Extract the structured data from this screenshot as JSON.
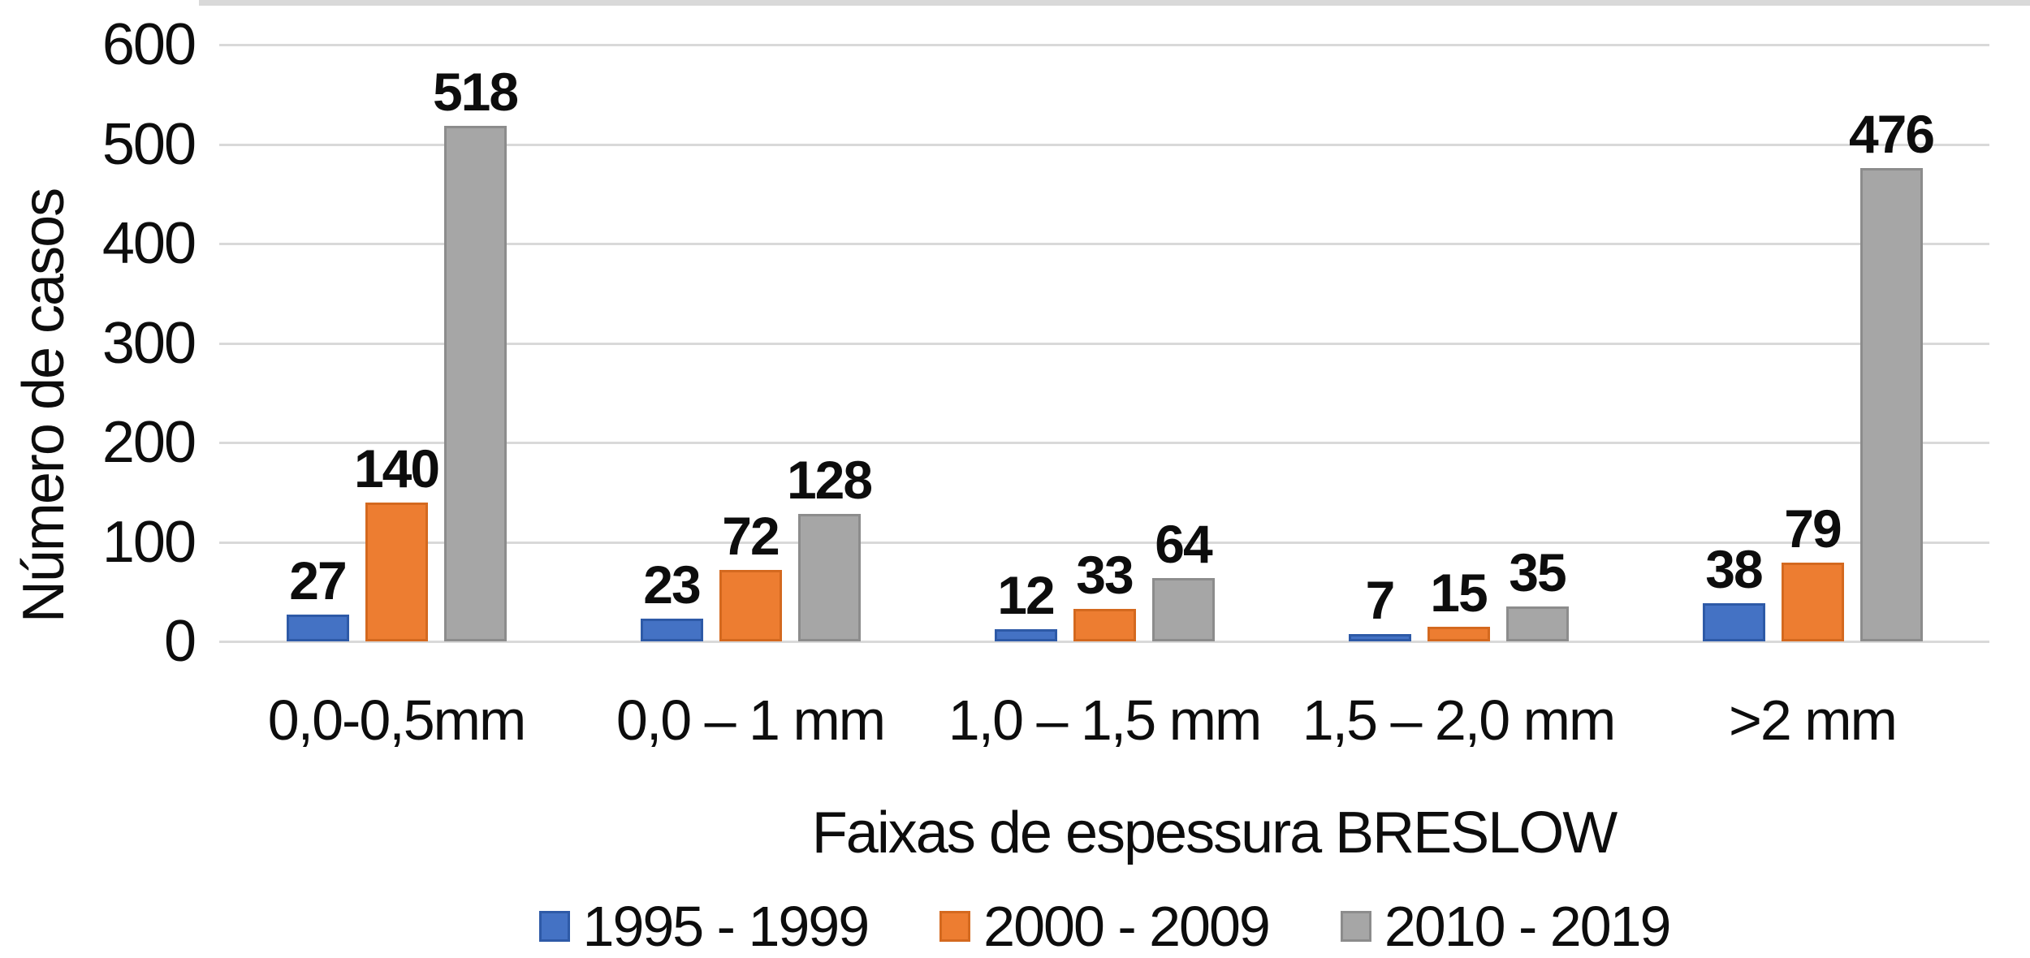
{
  "chart_data": {
    "type": "bar",
    "title": "",
    "xlabel": "Faixas de espessura BRESLOW",
    "ylabel": "Número de casos",
    "categories": [
      "0,0-0,5mm",
      "0,0 – 1 mm",
      "1,0 – 1,5 mm",
      "1,5 – 2,0 mm",
      ">2 mm"
    ],
    "series": [
      {
        "name": "1995 - 1999",
        "color": "#4472C4",
        "border_color": "#2E5AA7",
        "values": [
          27,
          23,
          12,
          7,
          38
        ]
      },
      {
        "name": "2000 - 2009",
        "color": "#ED7D31",
        "border_color": "#D4691F",
        "values": [
          140,
          72,
          33,
          15,
          79
        ]
      },
      {
        "name": "2010 - 2019",
        "color": "#A6A6A6",
        "border_color": "#8C8C8C",
        "values": [
          518,
          128,
          64,
          35,
          476
        ]
      }
    ],
    "ylim": [
      0,
      600
    ],
    "yticks": [
      0,
      100,
      200,
      300,
      400,
      500,
      600
    ],
    "grid": true,
    "gridline_color": "#D9D9D9",
    "legend_position": "bottom",
    "data_labels_shown": true
  }
}
